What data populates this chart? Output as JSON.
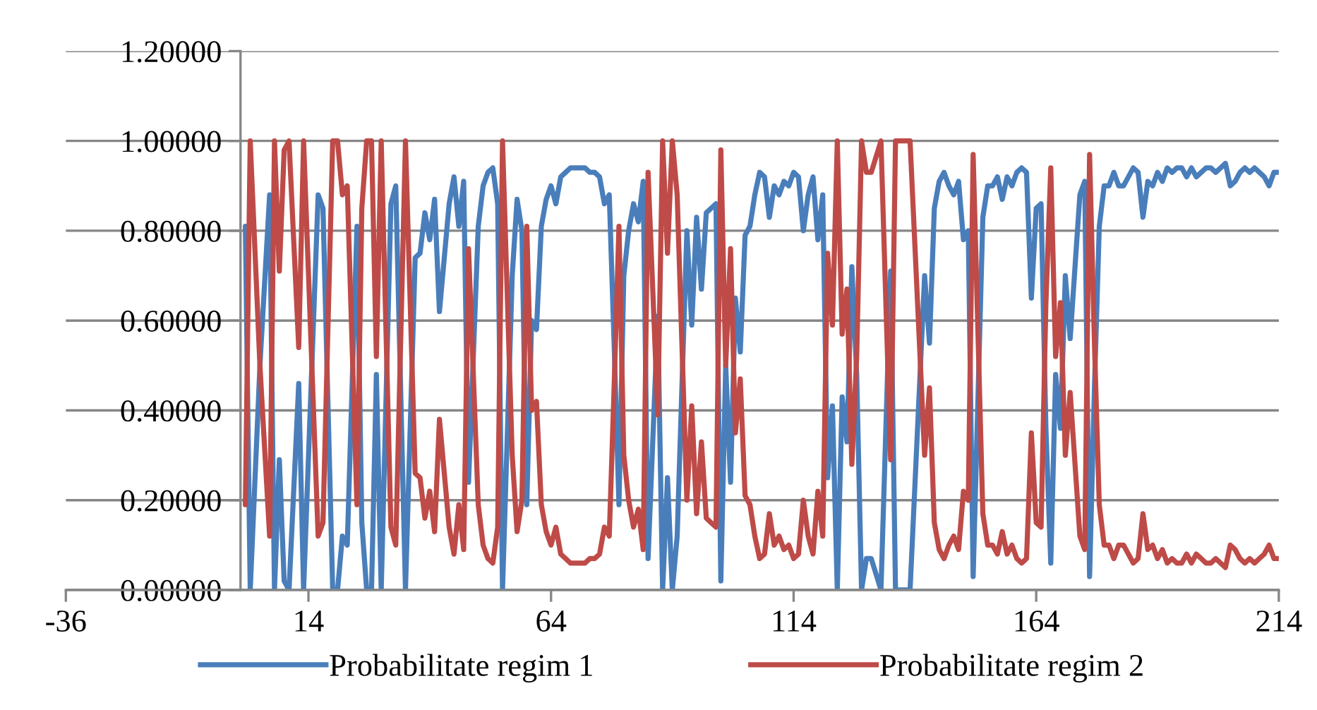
{
  "chart_data": {
    "type": "line",
    "xlim": [
      -36,
      214
    ],
    "xticks": [
      -36,
      14,
      64,
      114,
      164,
      214
    ],
    "ylim": [
      0,
      1.2
    ],
    "yticks": [
      {
        "value": 0,
        "label": "0.00000"
      },
      {
        "value": 0.2,
        "label": "0.20000"
      },
      {
        "value": 0.4,
        "label": "0.40000"
      },
      {
        "value": 0.6,
        "label": "0.60000"
      },
      {
        "value": 0.8,
        "label": "0.80000"
      },
      {
        "value": 1.0,
        "label": "1.00000"
      },
      {
        "value": 1.2,
        "label": "1.20000"
      }
    ],
    "grid": "y",
    "legend": "bottom",
    "marker": "none",
    "line_style": "solid",
    "x": [
      1,
      2,
      4,
      6,
      7,
      8,
      9,
      10,
      12,
      13,
      16,
      17,
      19,
      20,
      21,
      22,
      24,
      25,
      26,
      27,
      28,
      29,
      31,
      32,
      34,
      36,
      37,
      38,
      39,
      40,
      41,
      43,
      44,
      45,
      46,
      47,
      49,
      50,
      51,
      52,
      53,
      54,
      56,
      57,
      58,
      59,
      60,
      61,
      62,
      63,
      64,
      65,
      66,
      67,
      68,
      69,
      70,
      71,
      72,
      73,
      74,
      75,
      76,
      77,
      78,
      79,
      80,
      81,
      82,
      83,
      84,
      86,
      87,
      88,
      89,
      90,
      92,
      93,
      94,
      95,
      96,
      97,
      98,
      99,
      100,
      101,
      102,
      103,
      104,
      105,
      106,
      107,
      108,
      109,
      110,
      111,
      112,
      113,
      114,
      115,
      116,
      117,
      118,
      119,
      120,
      121,
      122,
      123,
      124,
      125,
      126,
      127,
      128,
      129,
      130,
      132,
      134,
      135,
      138,
      141,
      142,
      143,
      144,
      145,
      146,
      147,
      148,
      149,
      150,
      151,
      152,
      153,
      154,
      155,
      156,
      157,
      158,
      159,
      160,
      161,
      162,
      163,
      164,
      165,
      166,
      167,
      168,
      169,
      170,
      171,
      172,
      173,
      174,
      175,
      176,
      177,
      178,
      179,
      180,
      181,
      182,
      183,
      184,
      185,
      186,
      187,
      188,
      189,
      190,
      191,
      192,
      193,
      194,
      195,
      196,
      197,
      198,
      199,
      200,
      201,
      202,
      203,
      204,
      205,
      206,
      207,
      208,
      209,
      210,
      211,
      212,
      213,
      214
    ],
    "series": [
      {
        "name": "Probabilitate regim 1",
        "color": "#4a7ebb",
        "values": [
          0.81,
          0,
          0.5,
          0.88,
          0,
          0.29,
          0.02,
          0,
          0.46,
          0,
          0.88,
          0.85,
          0,
          0,
          0.12,
          0.1,
          0.81,
          0.15,
          0,
          0,
          0.48,
          0,
          0.86,
          0.9,
          0,
          0.74,
          0.75,
          0.84,
          0.78,
          0.87,
          0.62,
          0.86,
          0.92,
          0.81,
          0.91,
          0.24,
          0.81,
          0.9,
          0.93,
          0.94,
          0.86,
          0,
          0.7,
          0.87,
          0.8,
          0.19,
          0.6,
          0.58,
          0.81,
          0.87,
          0.9,
          0.86,
          0.92,
          0.93,
          0.94,
          0.94,
          0.94,
          0.94,
          0.93,
          0.93,
          0.92,
          0.86,
          0.88,
          0.55,
          0.19,
          0.7,
          0.8,
          0.86,
          0.82,
          0.91,
          0.07,
          0.61,
          0,
          0.25,
          0,
          0.12,
          0.8,
          0.59,
          0.83,
          0.67,
          0.84,
          0.85,
          0.86,
          0.02,
          0.5,
          0.24,
          0.65,
          0.53,
          0.79,
          0.81,
          0.88,
          0.93,
          0.92,
          0.83,
          0.9,
          0.88,
          0.91,
          0.9,
          0.93,
          0.92,
          0.8,
          0.88,
          0.92,
          0.78,
          0.88,
          0.25,
          0.41,
          0,
          0.43,
          0.33,
          0.72,
          0.48,
          0,
          0.07,
          0.07,
          0,
          0.71,
          0,
          0,
          0.7,
          0.55,
          0.85,
          0.91,
          0.93,
          0.9,
          0.88,
          0.91,
          0.78,
          0.8,
          0.03,
          0.43,
          0.83,
          0.9,
          0.9,
          0.92,
          0.87,
          0.92,
          0.9,
          0.93,
          0.94,
          0.93,
          0.65,
          0.85,
          0.86,
          0.36,
          0.06,
          0.48,
          0.36,
          0.7,
          0.56,
          0.72,
          0.88,
          0.91,
          0.03,
          0.45,
          0.81,
          0.9,
          0.9,
          0.93,
          0.9,
          0.9,
          0.92,
          0.94,
          0.93,
          0.83,
          0.91,
          0.9,
          0.93,
          0.91,
          0.94,
          0.93,
          0.94,
          0.94,
          0.92,
          0.94,
          0.92,
          0.93,
          0.94,
          0.94,
          0.93,
          0.94,
          0.95,
          0.9,
          0.91,
          0.93,
          0.94,
          0.93,
          0.94,
          0.93,
          0.92,
          0.9,
          0.93,
          0.93
        ]
      },
      {
        "name": "Probabilitate regim 2",
        "color": "#be4b48",
        "values": [
          0.19,
          1,
          0.5,
          0.12,
          1,
          0.71,
          0.98,
          1,
          0.54,
          1,
          0.12,
          0.15,
          1,
          1,
          0.88,
          0.9,
          0.19,
          0.85,
          1,
          1,
          0.52,
          1,
          0.14,
          0.1,
          1,
          0.26,
          0.25,
          0.16,
          0.22,
          0.13,
          0.38,
          0.14,
          0.08,
          0.19,
          0.09,
          0.76,
          0.19,
          0.1,
          0.07,
          0.06,
          0.14,
          1,
          0.3,
          0.13,
          0.2,
          0.81,
          0.4,
          0.42,
          0.19,
          0.13,
          0.1,
          0.14,
          0.08,
          0.07,
          0.06,
          0.06,
          0.06,
          0.06,
          0.07,
          0.07,
          0.08,
          0.14,
          0.12,
          0.45,
          0.81,
          0.3,
          0.2,
          0.14,
          0.18,
          0.09,
          0.93,
          0.39,
          1,
          0.75,
          1,
          0.88,
          0.2,
          0.41,
          0.17,
          0.33,
          0.16,
          0.15,
          0.14,
          0.98,
          0.5,
          0.76,
          0.35,
          0.47,
          0.21,
          0.19,
          0.12,
          0.07,
          0.08,
          0.17,
          0.1,
          0.12,
          0.09,
          0.1,
          0.07,
          0.08,
          0.2,
          0.12,
          0.08,
          0.22,
          0.12,
          0.75,
          0.59,
          1,
          0.57,
          0.67,
          0.28,
          0.52,
          1,
          0.93,
          0.93,
          1,
          0.29,
          1,
          1,
          0.3,
          0.45,
          0.15,
          0.09,
          0.07,
          0.1,
          0.12,
          0.09,
          0.22,
          0.2,
          0.97,
          0.57,
          0.17,
          0.1,
          0.1,
          0.08,
          0.13,
          0.08,
          0.1,
          0.07,
          0.06,
          0.07,
          0.35,
          0.15,
          0.14,
          0.64,
          0.94,
          0.52,
          0.64,
          0.3,
          0.44,
          0.28,
          0.12,
          0.09,
          0.97,
          0.55,
          0.19,
          0.1,
          0.1,
          0.07,
          0.1,
          0.1,
          0.08,
          0.06,
          0.07,
          0.17,
          0.09,
          0.1,
          0.07,
          0.09,
          0.06,
          0.07,
          0.06,
          0.06,
          0.08,
          0.06,
          0.08,
          0.07,
          0.06,
          0.06,
          0.07,
          0.06,
          0.05,
          0.1,
          0.09,
          0.07,
          0.06,
          0.07,
          0.06,
          0.07,
          0.08,
          0.1,
          0.07,
          0.07
        ]
      }
    ]
  }
}
